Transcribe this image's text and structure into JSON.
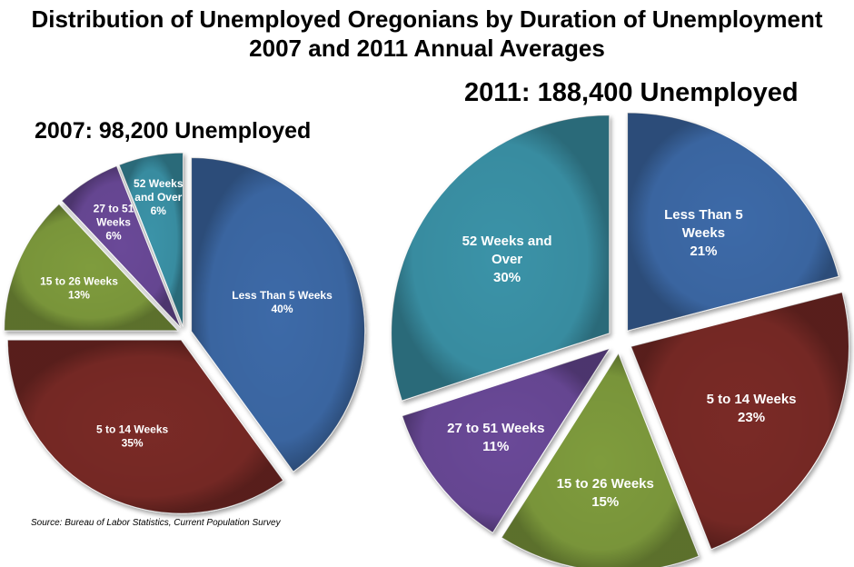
{
  "title": {
    "line1": "Distribution of Unemployed Oregonians by Duration of Unemployment",
    "line2": "2007 and 2011 Annual Averages"
  },
  "source": "Source: Bureau of Labor Statistics, Current Population Survey",
  "chart_data": [
    {
      "type": "pie",
      "title": "2007: 98,200 Unemployed",
      "categories": [
        "Less Than 5 Weeks",
        "5 to 14 Weeks",
        "15 to 26 Weeks",
        "27 to 51 Weeks",
        "52 Weeks and Over"
      ],
      "values": [
        40,
        35,
        13,
        6,
        6
      ],
      "labels": [
        [
          "Less Than 5 Weeks",
          "40%"
        ],
        [
          "5 to 14 Weeks",
          "35%"
        ],
        [
          "15 to 26 Weeks",
          "13%"
        ],
        [
          "27 to 51",
          "Weeks",
          "6%"
        ],
        [
          "52 Weeks",
          "and Over",
          "6%"
        ]
      ],
      "colors": [
        "#3d6aa8",
        "#7a2a28",
        "#7f9c3e",
        "#6b4a98",
        "#3a93a8"
      ],
      "start": "12 o'clock",
      "direction": "clockwise",
      "exploded": true
    },
    {
      "type": "pie",
      "title": "2011: 188,400 Unemployed",
      "categories": [
        "Less Than 5 Weeks",
        "5 to 14 Weeks",
        "15 to 26 Weeks",
        "27 to 51 Weeks",
        "52 Weeks and Over"
      ],
      "values": [
        21,
        23,
        15,
        11,
        30
      ],
      "labels": [
        [
          "Less Than 5",
          "Weeks",
          "21%"
        ],
        [
          "5 to 14 Weeks",
          "23%"
        ],
        [
          "15 to 26 Weeks",
          "15%"
        ],
        [
          "27 to 51 Weeks",
          "11%"
        ],
        [
          "52 Weeks and",
          "Over",
          "30%"
        ]
      ],
      "colors": [
        "#3d6aa8",
        "#7a2a28",
        "#7f9c3e",
        "#6b4a98",
        "#3a93a8"
      ],
      "start": "12 o'clock",
      "direction": "clockwise",
      "exploded": true
    }
  ]
}
